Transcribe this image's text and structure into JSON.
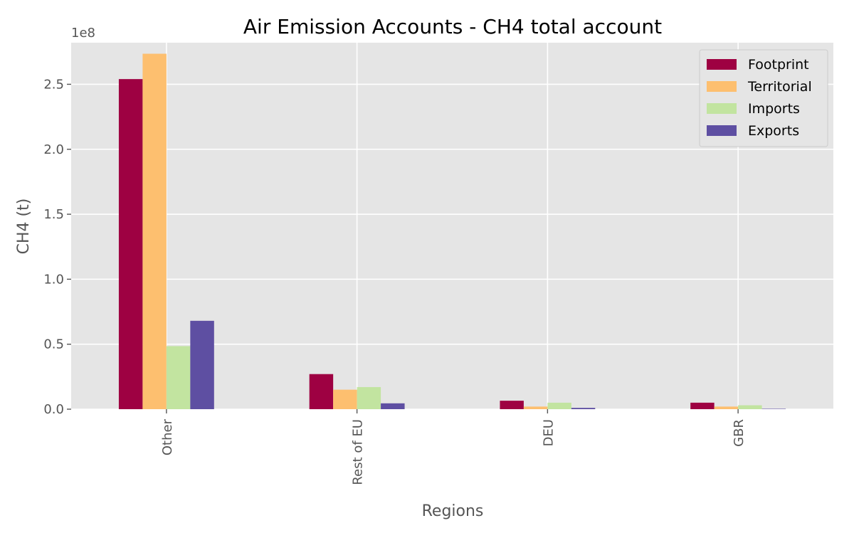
{
  "chart_data": {
    "type": "bar",
    "title": "Air Emission Accounts - CH4 total account",
    "xlabel": "Regions",
    "ylabel": "CH4 (t)",
    "y_offset_label": "1e8",
    "y_scale": 100000000,
    "ylim": [
      0,
      282000000
    ],
    "yticks": [
      0,
      50000000,
      100000000,
      150000000,
      200000000,
      250000000
    ],
    "ytick_labels": [
      "0.0",
      "0.5",
      "1.0",
      "1.5",
      "2.0",
      "2.5"
    ],
    "categories": [
      "Other",
      "Rest of EU",
      "DEU",
      "GBR"
    ],
    "series": [
      {
        "name": "Footprint",
        "color": "#9e0142",
        "values": [
          254000000,
          27000000,
          6500000,
          5000000
        ]
      },
      {
        "name": "Territorial",
        "color": "#fdbf6f",
        "values": [
          273500000,
          15000000,
          2000000,
          2000000
        ]
      },
      {
        "name": "Imports",
        "color": "#c2e4a0",
        "values": [
          48500000,
          17000000,
          5000000,
          3000000
        ]
      },
      {
        "name": "Exports",
        "color": "#5e4fa2",
        "values": [
          68000000,
          4500000,
          1000000,
          300000
        ]
      }
    ],
    "grid": true,
    "legend_position": "top-right",
    "background": "#e5e5e5",
    "grid_color": "#ffffff"
  }
}
